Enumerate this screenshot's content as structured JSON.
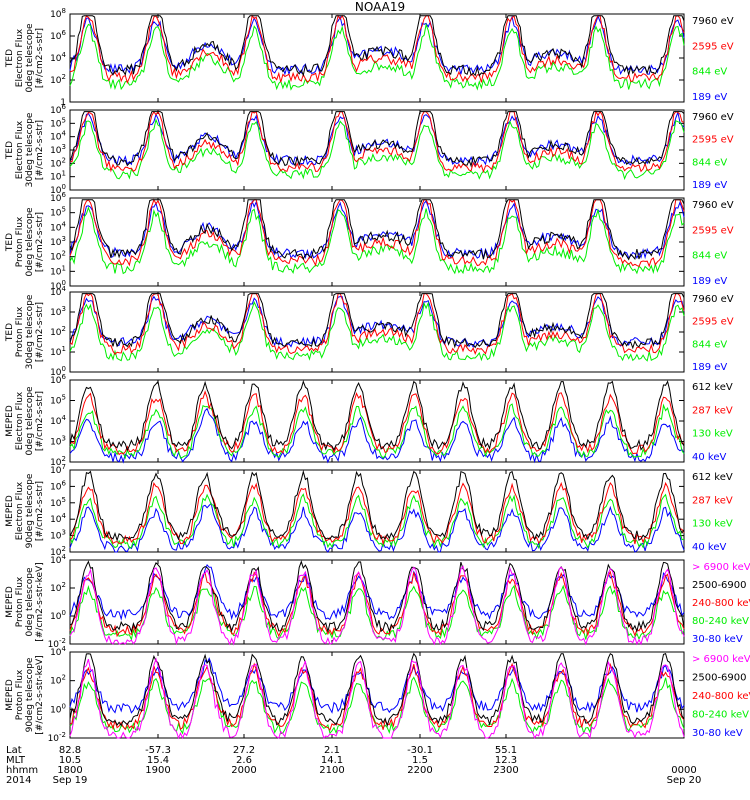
{
  "title": "NOAA19",
  "colors": {
    "black": "#000000",
    "red": "#ff0000",
    "green": "#00ee00",
    "blue": "#0000ff",
    "magenta": "#ff00ff"
  },
  "x_axis": {
    "row_labels": [
      "Lat",
      "MLT",
      "hhmm",
      "2014"
    ],
    "ticks": [
      {
        "lat": "82.8",
        "mlt": "10.5",
        "hhmm": "1800",
        "date": "Sep 19"
      },
      {
        "lat": "-57.3",
        "mlt": "15.4",
        "hhmm": "1900",
        "date": ""
      },
      {
        "lat": "27.2",
        "mlt": "2.6",
        "hhmm": "2000",
        "date": ""
      },
      {
        "lat": "2.1",
        "mlt": "14.1",
        "hhmm": "2100",
        "date": ""
      },
      {
        "lat": "-30.1",
        "mlt": "1.5",
        "hhmm": "2200",
        "date": ""
      },
      {
        "lat": "55.1",
        "mlt": "12.3",
        "hhmm": "2300",
        "date": ""
      },
      {
        "lat": "",
        "mlt": "",
        "hhmm": "0000",
        "date": "Sep 20"
      }
    ]
  },
  "chart_data": [
    {
      "type": "line",
      "ylabel": [
        "TED",
        "Electron Flux",
        "0deg telescope",
        "[#/cm2-s-str]"
      ],
      "ylog": true,
      "ylim": [
        1,
        100000000
      ],
      "yticks": [
        {
          "v": "1",
          "e": "0"
        },
        {
          "v": "10",
          "e": "2"
        },
        {
          "v": "10",
          "e": "4"
        },
        {
          "v": "10",
          "e": "6"
        },
        {
          "v": "10",
          "e": "8"
        }
      ],
      "legend": [
        {
          "label": "7960 eV",
          "color": "black"
        },
        {
          "label": "2595 eV",
          "color": "red"
        },
        {
          "label": "844 eV",
          "color": "green"
        },
        {
          "label": "189 eV",
          "color": "blue"
        }
      ],
      "profile": "ted_e0"
    },
    {
      "type": "line",
      "ylabel": [
        "TED",
        "Electron Flux",
        "30deg telescope",
        "[#/cm2-s-str]"
      ],
      "ylog": true,
      "ylim": [
        1,
        1000000
      ],
      "yticks": [
        {
          "v": "10",
          "e": "0"
        },
        {
          "v": "10",
          "e": "1"
        },
        {
          "v": "10",
          "e": "2"
        },
        {
          "v": "10",
          "e": "3"
        },
        {
          "v": "10",
          "e": "4"
        },
        {
          "v": "10",
          "e": "5"
        },
        {
          "v": "10",
          "e": "6"
        }
      ],
      "legend": [
        {
          "label": "7960 eV",
          "color": "black"
        },
        {
          "label": "2595 eV",
          "color": "red"
        },
        {
          "label": "844 eV",
          "color": "green"
        },
        {
          "label": "189 eV",
          "color": "blue"
        }
      ],
      "profile": "ted_e30"
    },
    {
      "type": "line",
      "ylabel": [
        "TED",
        "Proton Flux",
        "0deg telescope",
        "[#/cm2-s-str]"
      ],
      "ylog": true,
      "ylim": [
        1,
        1000000
      ],
      "yticks": [
        {
          "v": "10",
          "e": "0"
        },
        {
          "v": "10",
          "e": "1"
        },
        {
          "v": "10",
          "e": "2"
        },
        {
          "v": "10",
          "e": "3"
        },
        {
          "v": "10",
          "e": "4"
        },
        {
          "v": "10",
          "e": "5"
        },
        {
          "v": "10",
          "e": "6"
        }
      ],
      "legend": [
        {
          "label": "7960 eV",
          "color": "black"
        },
        {
          "label": "2595 eV",
          "color": "red"
        },
        {
          "label": "844 eV",
          "color": "green"
        },
        {
          "label": "189 eV",
          "color": "blue"
        }
      ],
      "profile": "ted_p0"
    },
    {
      "type": "line",
      "ylabel": [
        "TED",
        "Proton Flux",
        "30deg telescope",
        "[#/cm2-s-str]"
      ],
      "ylog": true,
      "ylim": [
        1,
        100000
      ],
      "yticks": [
        {
          "v": "10",
          "e": "0"
        },
        {
          "v": "10",
          "e": "1"
        },
        {
          "v": "10",
          "e": "2"
        },
        {
          "v": "10",
          "e": "3"
        },
        {
          "v": "10",
          "e": "4"
        }
      ],
      "legend": [
        {
          "label": "7960 eV",
          "color": "black"
        },
        {
          "label": "2595 eV",
          "color": "red"
        },
        {
          "label": "844 eV",
          "color": "green"
        },
        {
          "label": "189 eV",
          "color": "blue"
        }
      ],
      "profile": "ted_p30"
    },
    {
      "type": "line",
      "ylabel": [
        "MEPED",
        "Electron Flux",
        "0deg telescope",
        "[#/cm2-s-str]"
      ],
      "ylog": true,
      "ylim": [
        100,
        10000000
      ],
      "yticks": [
        {
          "v": "10",
          "e": "2"
        },
        {
          "v": "10",
          "e": "3"
        },
        {
          "v": "10",
          "e": "4"
        },
        {
          "v": "10",
          "e": "5"
        },
        {
          "v": "10",
          "e": "6"
        }
      ],
      "legend": [
        {
          "label": "612 keV",
          "color": "black"
        },
        {
          "label": "287 keV",
          "color": "red"
        },
        {
          "label": "130 keV",
          "color": "green"
        },
        {
          "label": "40 keV",
          "color": "blue"
        }
      ],
      "profile": "meped_e0"
    },
    {
      "type": "line",
      "ylabel": [
        "MEPED",
        "Electron Flux",
        "90deg telescope",
        "[#/cm2-s-str]"
      ],
      "ylog": true,
      "ylim": [
        100,
        10000000
      ],
      "yticks": [
        {
          "v": "10",
          "e": "2"
        },
        {
          "v": "10",
          "e": "3"
        },
        {
          "v": "10",
          "e": "4"
        },
        {
          "v": "10",
          "e": "5"
        },
        {
          "v": "10",
          "e": "6"
        },
        {
          "v": "10",
          "e": "7"
        }
      ],
      "legend": [
        {
          "label": "612 keV",
          "color": "black"
        },
        {
          "label": "287 keV",
          "color": "red"
        },
        {
          "label": "130 keV",
          "color": "green"
        },
        {
          "label": "40 keV",
          "color": "blue"
        }
      ],
      "profile": "meped_e90"
    },
    {
      "type": "line",
      "ylabel": [
        "MEPED",
        "Proton Flux",
        "0deg telescope",
        "[#/cm2-s-str-keV]"
      ],
      "ylog": true,
      "ylim": [
        0.01,
        100000
      ],
      "yticks": [
        {
          "v": "10",
          "e": "-2"
        },
        {
          "v": "10",
          "e": "0"
        },
        {
          "v": "10",
          "e": "2"
        },
        {
          "v": "10",
          "e": "4"
        }
      ],
      "legend": [
        {
          "label": "> 6900 keV",
          "color": "magenta"
        },
        {
          "label": "2500-6900",
          "color": "black"
        },
        {
          "label": "240-800 keV",
          "color": "red"
        },
        {
          "label": "80-240 keV",
          "color": "green"
        },
        {
          "label": "30-80 keV",
          "color": "blue"
        }
      ],
      "profile": "meped_p0"
    },
    {
      "type": "line",
      "ylabel": [
        "MEPED",
        "Proton Flux",
        "90deg telescope",
        "[#/cm2-s-str-keV]"
      ],
      "ylog": true,
      "ylim": [
        0.01,
        100000
      ],
      "yticks": [
        {
          "v": "10",
          "e": "-2"
        },
        {
          "v": "10",
          "e": "0"
        },
        {
          "v": "10",
          "e": "2"
        },
        {
          "v": "10",
          "e": "4"
        }
      ],
      "legend": [
        {
          "label": "> 6900 keV",
          "color": "magenta"
        },
        {
          "label": "2500-6900",
          "color": "black"
        },
        {
          "label": "240-800 keV",
          "color": "red"
        },
        {
          "label": "80-240 keV",
          "color": "green"
        },
        {
          "label": "30-80 keV",
          "color": "blue"
        }
      ],
      "profile": "meped_p90"
    }
  ]
}
